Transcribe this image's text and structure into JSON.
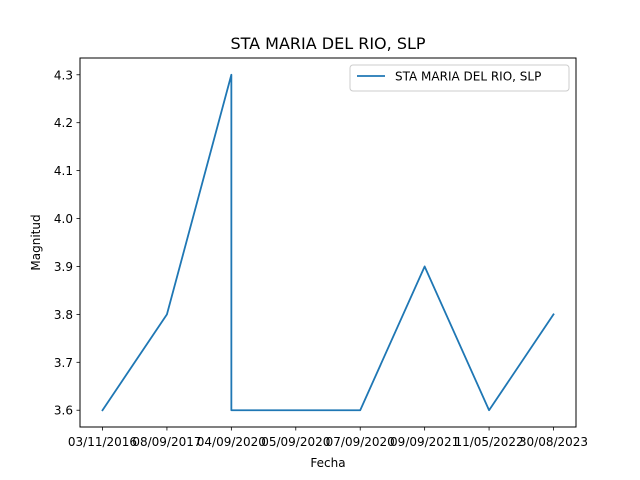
{
  "chart_data": {
    "type": "line",
    "title": "STA MARIA DEL RIO, SLP",
    "xlabel": "Fecha",
    "ylabel": "Magnitud",
    "x_ticks": [
      "03/11/2016",
      "08/09/2017",
      "04/09/2020",
      "05/09/2020",
      "07/09/2020",
      "09/09/2021",
      "11/05/2022",
      "30/08/2023"
    ],
    "series": [
      {
        "name": "STA MARIA DEL RIO, SLP",
        "color": "#1f77b4",
        "points": [
          {
            "x": "03/11/2016",
            "y": 3.6
          },
          {
            "x": "08/09/2017",
            "y": 3.8
          },
          {
            "x": "04/09/2020",
            "y": 4.3
          },
          {
            "x": "04/09/2020",
            "y": 3.6
          },
          {
            "x": "05/09/2020",
            "y": 3.6
          },
          {
            "x": "07/09/2020",
            "y": 3.6
          },
          {
            "x": "09/09/2021",
            "y": 3.9
          },
          {
            "x": "11/05/2022",
            "y": 3.6
          },
          {
            "x": "30/08/2023",
            "y": 3.8
          }
        ]
      }
    ],
    "y_ticks": [
      3.6,
      3.7,
      3.8,
      3.9,
      4.0,
      4.1,
      4.2,
      4.3
    ],
    "ylim": [
      3.565,
      4.335
    ],
    "grid": false,
    "legend": "top-right"
  }
}
